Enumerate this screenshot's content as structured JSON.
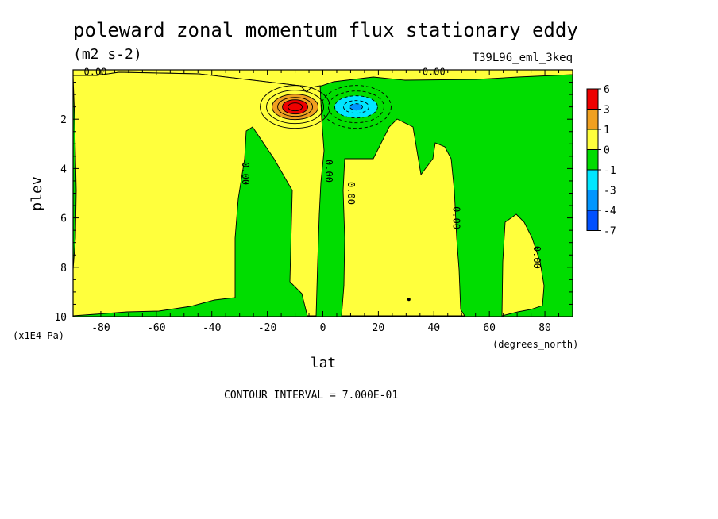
{
  "chart_data": {
    "type": "heatmap",
    "title": "poleward zonal momentum flux stationary eddy",
    "units": "(m2 s-2)",
    "run_label": "T39L96_eml_3keq",
    "xlabel": "lat",
    "x_units": "(degrees_north)",
    "ylabel": "plev",
    "y_units": "(x1E4 Pa)",
    "xlim": [
      -90,
      90
    ],
    "ylim": [
      10,
      0
    ],
    "x_ticks": [
      -80,
      -60,
      -40,
      -20,
      0,
      20,
      40,
      60,
      80
    ],
    "y_ticks": [
      2,
      4,
      6,
      8,
      10
    ],
    "contour_interval_text": "CONTOUR INTERVAL = 7.000E-01",
    "contour_interval": 0.7,
    "colorbar": {
      "labels": [
        "6",
        "3",
        "1",
        "0",
        "-1",
        "-3",
        "-4",
        "-7"
      ],
      "colors": [
        "#ee0000",
        "#f0a020",
        "#ffff3c",
        "#00dd00",
        "#00e6ff",
        "#0096ff",
        "#0050ff"
      ]
    },
    "zero_contour_labels": [
      {
        "text": "0.00",
        "lat": -82,
        "plev": 0.1
      },
      {
        "text": "0.00",
        "lat": 40,
        "plev": 0.1
      },
      {
        "text": "0.00",
        "lat": -28,
        "plev": 4.2
      },
      {
        "text": "0.00",
        "lat": 2,
        "plev": 4.1
      },
      {
        "text": "0.00",
        "lat": 10,
        "plev": 5.0
      },
      {
        "text": "0.00",
        "lat": 48,
        "plev": 6.0
      },
      {
        "text": "0.00",
        "lat": 77,
        "plev": 7.6
      }
    ],
    "extrema": [
      {
        "sign": "positive",
        "lat": -10,
        "plev": 1.5,
        "approx_value": 6
      },
      {
        "sign": "negative",
        "lat": 12,
        "plev": 1.5,
        "approx_value": -3
      }
    ]
  }
}
